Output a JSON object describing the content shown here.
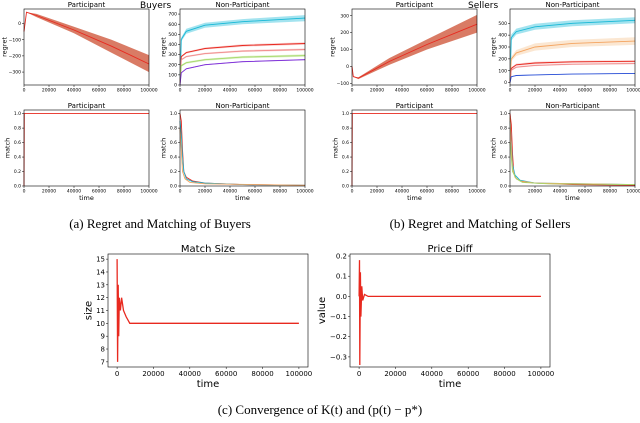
{
  "captions": {
    "a": "(a) Regret and Matching of Buyers",
    "b": "(b) Regret and Matching of Sellers",
    "c": "(c) Convergence of K(t) and (p(t) − p*)"
  },
  "groups": {
    "buyers": "Buyers",
    "sellers": "Sellers"
  },
  "colors": {
    "red": "#e8291f",
    "orange_band": "#d2644a",
    "cyan": "#18b8d6",
    "purple": "#7b2bd6",
    "green": "#a6d96a",
    "peach": "#f4c28f",
    "blue": "#2b50d6",
    "pink": "#f08c8c"
  },
  "chart_data": [
    {
      "id": "b_reg_p",
      "type": "area",
      "title": "Participant",
      "xlabel": "",
      "ylabel": "regret",
      "xlim": [
        0,
        100000
      ],
      "ylim": [
        -380,
        90
      ],
      "xticks": [
        0,
        20000,
        40000,
        60000,
        80000,
        100000
      ],
      "xtick_labels": [
        "0",
        "20000",
        "40000",
        "60000",
        "80000",
        "100000"
      ],
      "yticks": [
        -300,
        -200,
        -100,
        0
      ],
      "ytick_labels": [
        "−300",
        "−200",
        "−100",
        "0"
      ],
      "series": [
        {
          "name": "participant",
          "color": "#e8291f",
          "fill": "#d2644a",
          "x": [
            0,
            2000,
            10000,
            40000,
            70000,
            100000
          ],
          "y": [
            -50,
            70,
            50,
            -40,
            -140,
            -250
          ],
          "lo": [
            -50,
            70,
            40,
            -60,
            -180,
            -300
          ],
          "hi": [
            -50,
            70,
            60,
            -20,
            -100,
            -195
          ]
        }
      ]
    },
    {
      "id": "b_reg_n",
      "type": "line",
      "title": "Non-Participant",
      "xlabel": "",
      "ylabel": "regret",
      "xlim": [
        0,
        100000
      ],
      "ylim": [
        0,
        750
      ],
      "xticks": [
        0,
        20000,
        40000,
        60000,
        80000,
        100000
      ],
      "xtick_labels": [
        "0",
        "20000",
        "40000",
        "60000",
        "80000",
        "100000"
      ],
      "yticks": [
        0,
        100,
        200,
        300,
        400,
        500,
        600,
        700
      ],
      "ytick_labels": [
        "0",
        "100",
        "200",
        "300",
        "400",
        "500",
        "600",
        "700"
      ],
      "series": [
        {
          "name": "cyan",
          "color": "#18b8d6",
          "fill": "#18b8d6",
          "x": [
            0,
            1000,
            5000,
            20000,
            50000,
            100000
          ],
          "y": [
            0,
            450,
            530,
            590,
            625,
            660
          ],
          "lo": [
            0,
            430,
            505,
            565,
            600,
            630
          ],
          "hi": [
            0,
            470,
            555,
            615,
            650,
            690
          ]
        },
        {
          "name": "red",
          "color": "#e8291f",
          "fill": "#f08c8c",
          "x": [
            0,
            1000,
            5000,
            20000,
            50000,
            100000
          ],
          "y": [
            0,
            280,
            320,
            360,
            390,
            410
          ],
          "lo": [
            0,
            270,
            310,
            350,
            378,
            398
          ],
          "hi": [
            0,
            290,
            330,
            370,
            402,
            422
          ]
        },
        {
          "name": "pink",
          "color": "#f08c8c",
          "fill": "#f08c8c",
          "x": [
            0,
            1000,
            5000,
            20000,
            50000,
            100000
          ],
          "y": [
            0,
            250,
            280,
            310,
            335,
            350
          ],
          "lo": [
            0,
            242,
            272,
            302,
            326,
            340
          ],
          "hi": [
            0,
            258,
            288,
            318,
            344,
            360
          ]
        },
        {
          "name": "green",
          "color": "#a6d96a",
          "fill": "#a6d96a",
          "x": [
            0,
            1000,
            5000,
            20000,
            50000,
            100000
          ],
          "y": [
            0,
            190,
            220,
            250,
            275,
            290
          ],
          "lo": [
            0,
            180,
            210,
            240,
            264,
            278
          ],
          "hi": [
            0,
            200,
            230,
            260,
            286,
            302
          ]
        },
        {
          "name": "purple",
          "color": "#7b2bd6",
          "fill": "#7b2bd6",
          "x": [
            0,
            1000,
            5000,
            20000,
            50000,
            100000
          ],
          "y": [
            0,
            120,
            160,
            200,
            230,
            250
          ],
          "lo": [
            0,
            116,
            155,
            195,
            224,
            244
          ],
          "hi": [
            0,
            124,
            165,
            205,
            236,
            256
          ]
        }
      ]
    },
    {
      "id": "b_match_p",
      "type": "line",
      "title": "Participant",
      "xlabel": "time",
      "ylabel": "match",
      "xlim": [
        0,
        100000
      ],
      "ylim": [
        0,
        1.05
      ],
      "xticks": [
        0,
        20000,
        40000,
        60000,
        80000,
        100000
      ],
      "xtick_labels": [
        "0",
        "20000",
        "40000",
        "60000",
        "80000",
        "100000"
      ],
      "yticks": [
        0,
        0.2,
        0.4,
        0.6,
        0.8,
        1.0
      ],
      "ytick_labels": [
        "0.0",
        "0.2",
        "0.4",
        "0.6",
        "0.8",
        "1.0"
      ],
      "series": [
        {
          "name": "participant",
          "color": "#e8291f",
          "x": [
            0,
            200,
            400,
            100000
          ],
          "y": [
            0,
            1.0,
            1.0,
            1.0
          ]
        }
      ]
    },
    {
      "id": "b_match_n",
      "type": "line",
      "title": "Non-Participant",
      "xlabel": "time",
      "ylabel": "match",
      "xlim": [
        0,
        100000
      ],
      "ylim": [
        0,
        1.05
      ],
      "xticks": [
        0,
        20000,
        40000,
        60000,
        80000,
        100000
      ],
      "xtick_labels": [
        "0",
        "20000",
        "40000",
        "60000",
        "80000",
        "100000"
      ],
      "yticks": [
        0,
        0.2,
        0.4,
        0.6,
        0.8,
        1.0
      ],
      "ytick_labels": [
        "0.0",
        "0.2",
        "0.4",
        "0.6",
        "0.8",
        "1.0"
      ],
      "series": [
        {
          "name": "red",
          "color": "#e8291f",
          "x": [
            0,
            1000,
            2000,
            3000,
            5000,
            10000,
            20000,
            50000,
            100000
          ],
          "y": [
            1.0,
            0.9,
            0.5,
            0.2,
            0.12,
            0.07,
            0.04,
            0.02,
            0.01
          ]
        },
        {
          "name": "cyan",
          "color": "#18b8d6",
          "x": [
            0,
            1000,
            2000,
            3000,
            5000,
            10000,
            20000,
            50000,
            100000
          ],
          "y": [
            0.9,
            0.7,
            0.4,
            0.2,
            0.1,
            0.06,
            0.04,
            0.02,
            0.01
          ]
        },
        {
          "name": "orange",
          "color": "#f4a460",
          "x": [
            0,
            1000,
            2000,
            4000,
            8000,
            20000,
            100000
          ],
          "y": [
            0.8,
            0.5,
            0.2,
            0.1,
            0.05,
            0.03,
            0.01
          ]
        }
      ]
    },
    {
      "id": "s_reg_p",
      "type": "area",
      "title": "Participant",
      "xlabel": "",
      "ylabel": "regret",
      "xlim": [
        0,
        100000
      ],
      "ylim": [
        -110,
        340
      ],
      "xticks": [
        0,
        20000,
        40000,
        60000,
        80000,
        100000
      ],
      "xtick_labels": [
        "0",
        "20000",
        "40000",
        "60000",
        "80000",
        "100000"
      ],
      "yticks": [
        -100,
        0,
        100,
        200,
        300
      ],
      "ytick_labels": [
        "−100",
        "0",
        "100",
        "200",
        "300"
      ],
      "series": [
        {
          "name": "participant",
          "color": "#e8291f",
          "fill": "#d2644a",
          "x": [
            0,
            1000,
            5000,
            30000,
            60000,
            100000
          ],
          "y": [
            0,
            -60,
            -70,
            30,
            130,
            250
          ],
          "lo": [
            0,
            -60,
            -75,
            10,
            100,
            200
          ],
          "hi": [
            0,
            -60,
            -65,
            50,
            160,
            305
          ]
        }
      ]
    },
    {
      "id": "s_reg_n",
      "type": "line",
      "title": "Non-Participant",
      "xlabel": "",
      "ylabel": "regret",
      "xlim": [
        0,
        100000
      ],
      "ylim": [
        -20,
        620
      ],
      "xticks": [
        0,
        20000,
        40000,
        60000,
        80000,
        100000
      ],
      "xtick_labels": [
        "0",
        "20000",
        "40000",
        "60000",
        "80000",
        "100000"
      ],
      "yticks": [
        0,
        100,
        200,
        300,
        400,
        500
      ],
      "ytick_labels": [
        "0",
        "100",
        "200",
        "300",
        "400",
        "500"
      ],
      "series": [
        {
          "name": "cyan",
          "color": "#18b8d6",
          "fill": "#18b8d6",
          "x": [
            0,
            1000,
            5000,
            20000,
            50000,
            100000
          ],
          "y": [
            0,
            380,
            430,
            470,
            500,
            525
          ],
          "lo": [
            0,
            355,
            405,
            445,
            475,
            500
          ],
          "hi": [
            0,
            405,
            455,
            495,
            525,
            550
          ]
        },
        {
          "name": "peach",
          "color": "#f4a460",
          "fill": "#f4c28f",
          "x": [
            0,
            1000,
            5000,
            20000,
            50000,
            100000
          ],
          "y": [
            0,
            200,
            250,
            300,
            330,
            350
          ],
          "lo": [
            0,
            180,
            225,
            270,
            300,
            318
          ],
          "hi": [
            0,
            220,
            275,
            330,
            360,
            382
          ]
        },
        {
          "name": "red",
          "color": "#e8291f",
          "fill": "#f08c8c",
          "x": [
            0,
            1000,
            5000,
            20000,
            50000,
            100000
          ],
          "y": [
            0,
            120,
            150,
            165,
            175,
            180
          ],
          "lo": [
            0,
            110,
            140,
            155,
            165,
            170
          ],
          "hi": [
            0,
            130,
            160,
            175,
            185,
            190
          ]
        },
        {
          "name": "pink",
          "color": "#f08c8c",
          "fill": "#f08c8c",
          "x": [
            0,
            1000,
            5000,
            20000,
            50000,
            100000
          ],
          "y": [
            0,
            105,
            130,
            145,
            155,
            160
          ],
          "lo": [
            0,
            99,
            124,
            139,
            149,
            154
          ],
          "hi": [
            0,
            111,
            136,
            151,
            161,
            166
          ]
        },
        {
          "name": "blue",
          "color": "#2b50d6",
          "fill": "#2b50d6",
          "x": [
            0,
            1000,
            5000,
            20000,
            50000,
            100000
          ],
          "y": [
            0,
            50,
            60,
            65,
            72,
            78
          ],
          "lo": [
            0,
            47,
            57,
            62,
            69,
            75
          ],
          "hi": [
            0,
            53,
            63,
            68,
            75,
            81
          ]
        }
      ]
    },
    {
      "id": "s_match_p",
      "type": "line",
      "title": "Participant",
      "xlabel": "time",
      "ylabel": "match",
      "xlim": [
        0,
        100000
      ],
      "ylim": [
        0,
        1.05
      ],
      "xticks": [
        0,
        20000,
        40000,
        60000,
        80000,
        100000
      ],
      "xtick_labels": [
        "0",
        "20000",
        "40000",
        "60000",
        "80000",
        "100000"
      ],
      "yticks": [
        0,
        0.2,
        0.4,
        0.6,
        0.8,
        1.0
      ],
      "ytick_labels": [
        "0.0",
        "0.2",
        "0.4",
        "0.6",
        "0.8",
        "1.0"
      ],
      "series": [
        {
          "name": "participant",
          "color": "#e8291f",
          "x": [
            0,
            200,
            400,
            100000
          ],
          "y": [
            0,
            1.0,
            1.0,
            1.0
          ]
        }
      ]
    },
    {
      "id": "s_match_n",
      "type": "line",
      "title": "Non-Participant",
      "xlabel": "time",
      "ylabel": "match",
      "xlim": [
        0,
        100000
      ],
      "ylim": [
        0,
        1.05
      ],
      "xticks": [
        0,
        20000,
        40000,
        60000,
        80000,
        100000
      ],
      "xtick_labels": [
        "0",
        "20000",
        "40000",
        "60000",
        "80000",
        "100000"
      ],
      "yticks": [
        0,
        0.2,
        0.4,
        0.6,
        0.8,
        1.0
      ],
      "ytick_labels": [
        "0.0",
        "0.2",
        "0.4",
        "0.6",
        "0.8",
        "1.0"
      ],
      "series": [
        {
          "name": "red",
          "color": "#e8291f",
          "x": [
            0,
            1000,
            2000,
            3000,
            5000,
            10000,
            20000,
            50000,
            100000
          ],
          "y": [
            1.0,
            0.85,
            0.45,
            0.18,
            0.1,
            0.06,
            0.04,
            0.02,
            0.01
          ]
        },
        {
          "name": "cyan",
          "color": "#18b8d6",
          "x": [
            0,
            1000,
            2000,
            4000,
            8000,
            20000,
            100000
          ],
          "y": [
            0.9,
            0.6,
            0.3,
            0.15,
            0.08,
            0.04,
            0.02
          ]
        },
        {
          "name": "orange",
          "color": "#f4a460",
          "x": [
            0,
            1000,
            2000,
            4000,
            8000,
            20000,
            100000
          ],
          "y": [
            0.95,
            0.5,
            0.25,
            0.12,
            0.07,
            0.04,
            0.02
          ]
        },
        {
          "name": "green",
          "color": "#a6d96a",
          "x": [
            0,
            2000,
            5000,
            10000,
            30000,
            100000
          ],
          "y": [
            0.6,
            0.2,
            0.1,
            0.05,
            0.03,
            0.02
          ]
        }
      ]
    },
    {
      "id": "match_size",
      "type": "line",
      "title": "Match Size",
      "xlabel": "time",
      "ylabel": "size",
      "xlim": [
        -5000,
        105000
      ],
      "ylim": [
        6.6,
        15.4
      ],
      "xticks": [
        0,
        20000,
        40000,
        60000,
        80000,
        100000
      ],
      "xtick_labels": [
        "0",
        "20000",
        "40000",
        "60000",
        "80000",
        "100000"
      ],
      "yticks": [
        7,
        8,
        9,
        10,
        11,
        12,
        13,
        14,
        15
      ],
      "ytick_labels": [
        "7",
        "8",
        "9",
        "10",
        "11",
        "12",
        "13",
        "14",
        "15"
      ],
      "series": [
        {
          "name": "size",
          "color": "#e8291f",
          "x": [
            0,
            300,
            600,
            900,
            1200,
            1800,
            2500,
            3500,
            5000,
            7000,
            10000,
            100000
          ],
          "y": [
            15,
            7,
            13,
            9,
            12,
            11,
            12,
            11,
            10.5,
            10,
            10,
            10
          ]
        }
      ]
    },
    {
      "id": "price_diff",
      "type": "line",
      "title": "Price Diff",
      "xlabel": "time",
      "ylabel": "value",
      "xlim": [
        -5000,
        105000
      ],
      "ylim": [
        -0.35,
        0.21
      ],
      "xticks": [
        0,
        20000,
        40000,
        60000,
        80000,
        100000
      ],
      "xtick_labels": [
        "0",
        "20000",
        "40000",
        "60000",
        "80000",
        "100000"
      ],
      "yticks": [
        -0.3,
        -0.2,
        -0.1,
        0.0,
        0.1,
        0.2
      ],
      "ytick_labels": [
        "−0.3",
        "−0.2",
        "−0.1",
        "0.0",
        "0.1",
        "0.2"
      ],
      "series": [
        {
          "name": "diff",
          "color": "#e8291f",
          "x": [
            0,
            200,
            400,
            700,
            1000,
            1500,
            2000,
            3000,
            5000,
            10000,
            100000
          ],
          "y": [
            0,
            0.18,
            -0.34,
            0.12,
            -0.1,
            0.05,
            -0.02,
            0.01,
            0.0,
            0.0,
            0.0
          ]
        }
      ]
    }
  ]
}
